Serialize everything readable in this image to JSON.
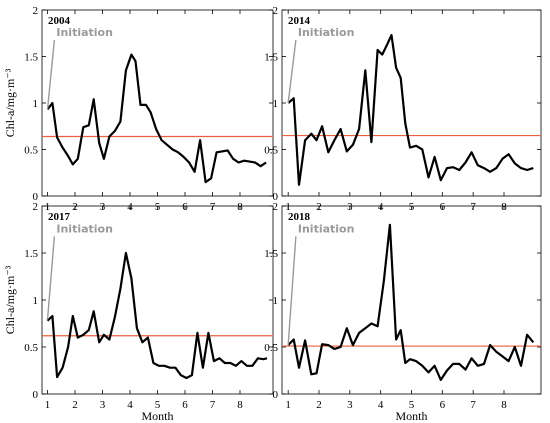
{
  "chart_data": [
    {
      "type": "line",
      "title": "2004",
      "xlabel": "",
      "ylabel": "Chl-a/mg·m⁻³",
      "xlim": [
        0.8,
        9.2
      ],
      "ylim": [
        0,
        2
      ],
      "xticks": [
        1,
        2,
        3,
        4,
        5,
        6,
        7,
        8
      ],
      "yticks": [
        0,
        0.5,
        1,
        1.5,
        2
      ],
      "threshold": 0.64,
      "annotation": {
        "text": "Initiation",
        "x": 1.0,
        "y": 0.93
      },
      "series": [
        {
          "x": [
            1.0,
            1.18,
            1.35,
            1.55,
            1.75,
            1.92,
            2.1,
            2.3,
            2.5,
            2.68,
            2.88,
            3.05,
            3.25,
            3.45,
            3.65,
            3.85,
            4.05,
            4.2,
            4.38,
            4.58,
            4.75,
            4.95,
            5.15,
            5.35,
            5.55,
            5.75,
            5.95,
            6.15,
            6.35,
            6.55,
            6.75,
            6.95,
            7.15,
            7.35,
            7.55,
            7.75,
            7.95,
            8.15,
            8.35,
            8.55,
            8.75,
            8.95
          ],
          "values": [
            0.93,
            1.0,
            0.63,
            0.52,
            0.43,
            0.34,
            0.4,
            0.74,
            0.76,
            1.04,
            0.57,
            0.4,
            0.64,
            0.7,
            0.8,
            1.35,
            1.52,
            1.45,
            0.98,
            0.98,
            0.9,
            0.72,
            0.6,
            0.55,
            0.5,
            0.47,
            0.42,
            0.36,
            0.26,
            0.6,
            0.15,
            0.19,
            0.47,
            0.48,
            0.49,
            0.4,
            0.36,
            0.38,
            0.37,
            0.36,
            0.32,
            0.36
          ]
        }
      ]
    },
    {
      "type": "line",
      "title": "2014",
      "xlabel": "",
      "ylabel": "",
      "xlim": [
        0.8,
        9.2
      ],
      "ylim": [
        0,
        2
      ],
      "xticks": [
        1,
        2,
        3,
        4,
        5,
        6,
        7,
        8
      ],
      "yticks": [
        0,
        0.5,
        1,
        1.5,
        2
      ],
      "threshold": 0.65,
      "annotation": {
        "text": "Initiation",
        "x": 1.0,
        "y": 1.0
      },
      "series": [
        {
          "x": [
            1.0,
            1.18,
            1.35,
            1.55,
            1.75,
            1.92,
            2.1,
            2.3,
            2.5,
            2.7,
            2.9,
            3.1,
            3.3,
            3.5,
            3.7,
            3.9,
            4.05,
            4.2,
            4.35,
            4.5,
            4.65,
            4.8,
            4.95,
            5.15,
            5.35,
            5.55,
            5.75,
            5.95,
            6.15,
            6.35,
            6.55,
            6.75,
            6.95,
            7.15,
            7.35,
            7.55,
            7.75,
            7.95,
            8.15,
            8.35,
            8.55,
            8.75,
            8.95
          ],
          "values": [
            1.0,
            1.05,
            0.12,
            0.6,
            0.67,
            0.6,
            0.75,
            0.47,
            0.6,
            0.72,
            0.48,
            0.55,
            0.72,
            1.35,
            0.58,
            1.57,
            1.52,
            1.62,
            1.73,
            1.38,
            1.27,
            0.78,
            0.52,
            0.54,
            0.5,
            0.2,
            0.42,
            0.17,
            0.3,
            0.31,
            0.28,
            0.36,
            0.47,
            0.33,
            0.3,
            0.26,
            0.3,
            0.4,
            0.45,
            0.35,
            0.3,
            0.28,
            0.3
          ]
        }
      ]
    },
    {
      "type": "line",
      "title": "2017",
      "xlabel": "Month",
      "ylabel": "Chl-a/mg·m⁻³",
      "xlim": [
        0.8,
        9.2
      ],
      "ylim": [
        0,
        2
      ],
      "xticks": [
        1,
        2,
        3,
        4,
        5,
        6,
        7,
        8
      ],
      "yticks": [
        0,
        0.5,
        1,
        1.5,
        2
      ],
      "threshold": 0.62,
      "annotation": {
        "text": "Initiation",
        "x": 1.0,
        "y": 0.79
      },
      "series": [
        {
          "x": [
            1.0,
            1.18,
            1.35,
            1.55,
            1.75,
            1.92,
            2.1,
            2.3,
            2.5,
            2.68,
            2.88,
            3.05,
            3.25,
            3.45,
            3.65,
            3.85,
            4.05,
            4.25,
            4.45,
            4.65,
            4.85,
            5.05,
            5.25,
            5.45,
            5.65,
            5.85,
            6.05,
            6.25,
            6.45,
            6.65,
            6.85,
            7.05,
            7.25,
            7.45,
            7.65,
            7.85,
            8.05,
            8.25,
            8.45,
            8.65,
            8.85,
            8.98
          ],
          "values": [
            0.78,
            0.83,
            0.18,
            0.28,
            0.5,
            0.83,
            0.6,
            0.63,
            0.68,
            0.88,
            0.55,
            0.63,
            0.58,
            0.82,
            1.12,
            1.5,
            1.23,
            0.7,
            0.55,
            0.6,
            0.33,
            0.3,
            0.3,
            0.28,
            0.28,
            0.2,
            0.17,
            0.2,
            0.65,
            0.28,
            0.65,
            0.35,
            0.38,
            0.33,
            0.33,
            0.3,
            0.35,
            0.3,
            0.3,
            0.38,
            0.37,
            0.38
          ]
        }
      ]
    },
    {
      "type": "line",
      "title": "2018",
      "xlabel": "Month",
      "ylabel": "",
      "xlim": [
        0.8,
        9.2
      ],
      "ylim": [
        0,
        2
      ],
      "xticks": [
        1,
        2,
        3,
        4,
        5,
        6,
        7,
        8
      ],
      "yticks": [
        0,
        0.5,
        1,
        1.5,
        2
      ],
      "threshold": 0.51,
      "annotation": {
        "text": "Initiation",
        "x": 1.0,
        "y": 0.52
      },
      "series": [
        {
          "x": [
            1.0,
            1.18,
            1.35,
            1.55,
            1.75,
            1.92,
            2.1,
            2.3,
            2.5,
            2.7,
            2.9,
            3.1,
            3.3,
            3.5,
            3.7,
            3.9,
            4.1,
            4.3,
            4.5,
            4.65,
            4.8,
            4.95,
            5.15,
            5.35,
            5.55,
            5.75,
            5.95,
            6.15,
            6.35,
            6.55,
            6.75,
            6.95,
            7.15,
            7.35,
            7.55,
            7.75,
            7.95,
            8.15,
            8.35,
            8.55,
            8.75,
            8.95
          ],
          "values": [
            0.52,
            0.58,
            0.28,
            0.57,
            0.21,
            0.22,
            0.53,
            0.52,
            0.48,
            0.5,
            0.7,
            0.52,
            0.65,
            0.7,
            0.75,
            0.72,
            1.2,
            1.8,
            0.58,
            0.68,
            0.33,
            0.37,
            0.35,
            0.3,
            0.23,
            0.3,
            0.15,
            0.25,
            0.32,
            0.32,
            0.26,
            0.38,
            0.3,
            0.32,
            0.52,
            0.45,
            0.4,
            0.35,
            0.5,
            0.3,
            0.63,
            0.55
          ]
        }
      ]
    }
  ],
  "colors": {
    "series": "#000000",
    "threshold": "#e8603c",
    "annotation": "#9a9a9a",
    "axes": "#000000",
    "background": "#ffffff"
  }
}
